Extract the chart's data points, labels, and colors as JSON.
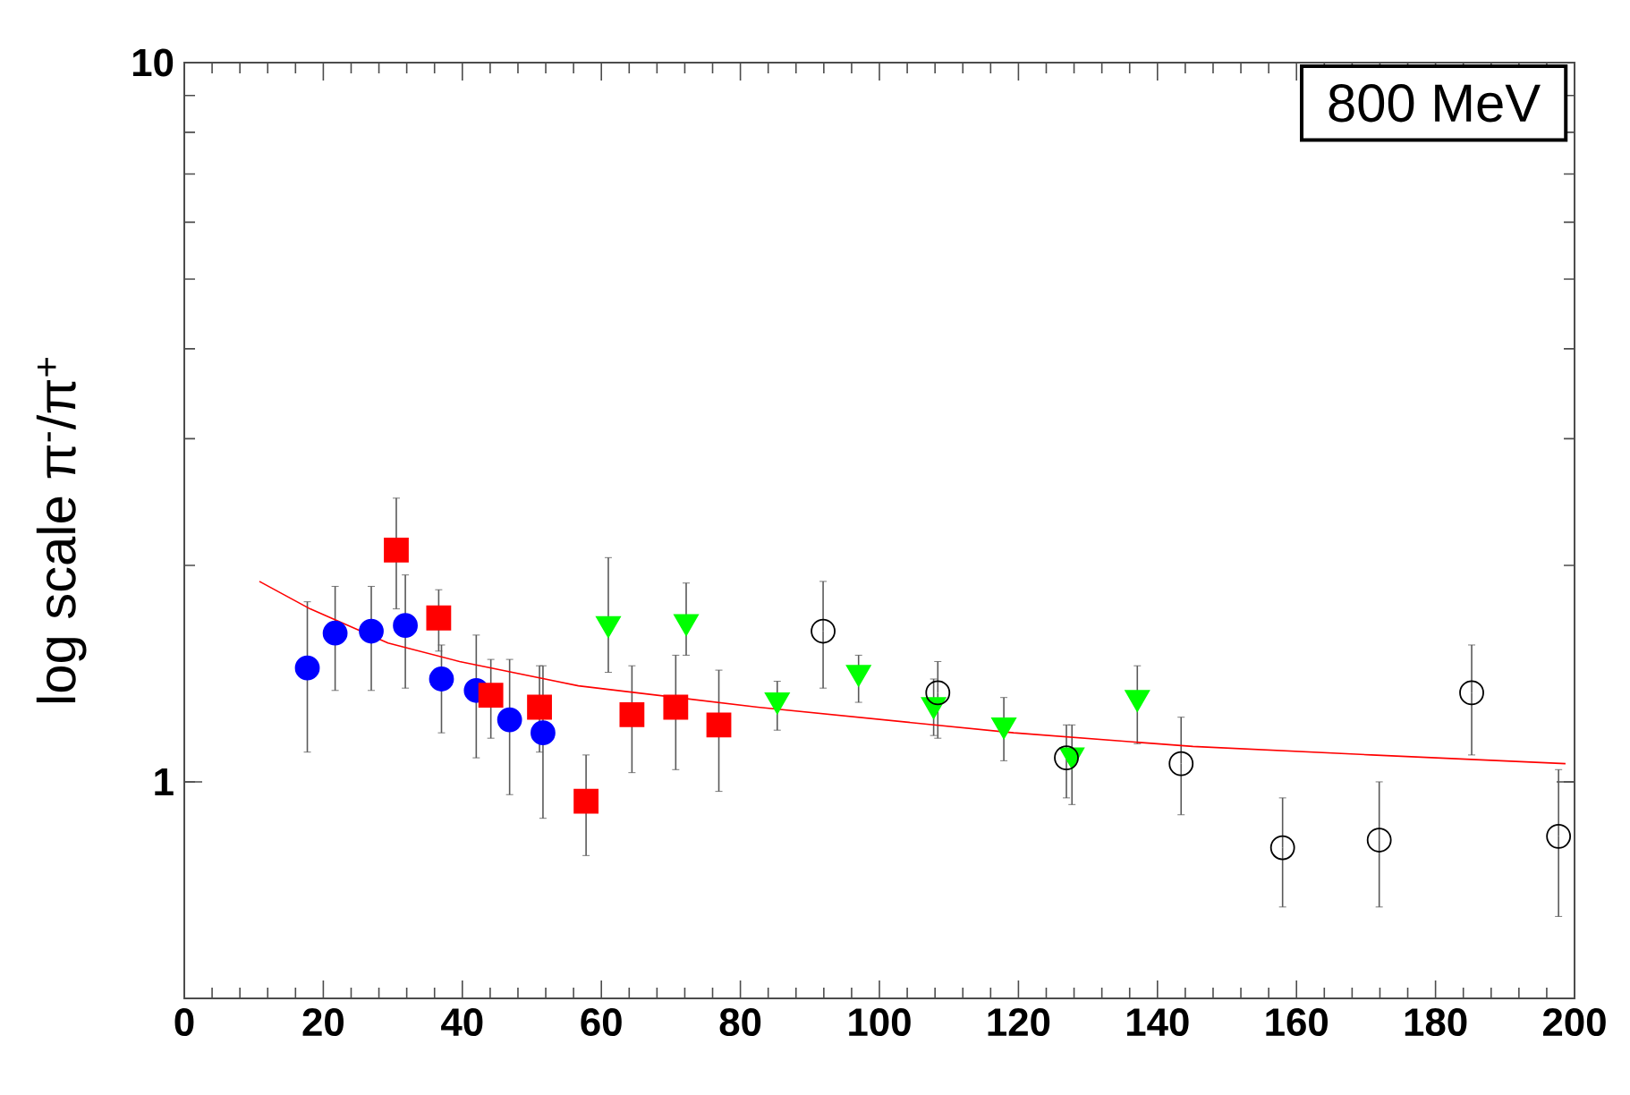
{
  "chart_data": {
    "type": "scatter",
    "ylabel": "log scale   π$^{-}$/π$^{+}$",
    "log": "y",
    "xlim": [
      0,
      200
    ],
    "xticks": [
      0,
      20,
      40,
      60,
      80,
      100,
      120,
      140,
      160,
      180,
      200
    ],
    "ylim": [
      0.5,
      10
    ],
    "yticks": [
      1,
      10
    ],
    "annotations": [
      "800 MeV"
    ],
    "series": [
      {
        "color": "#0000ff",
        "marker": "circle",
        "x": [
          17.7,
          21.7,
          26.9,
          31.8,
          37.0,
          42.0,
          46.8,
          51.6
        ],
        "values": [
          1.44,
          1.61,
          1.62,
          1.65,
          1.39,
          1.34,
          1.22,
          1.17
        ],
        "errors": [
          [
            1.1,
            1.78
          ],
          [
            1.34,
            1.87
          ],
          [
            1.34,
            1.87
          ],
          [
            1.35,
            1.94
          ],
          [
            1.17,
            1.55
          ],
          [
            1.08,
            1.6
          ],
          [
            0.96,
            1.48
          ],
          [
            0.89,
            1.45
          ]
        ]
      },
      {
        "color": "#ff0000",
        "marker": "square",
        "x": [
          30.5,
          36.6,
          44.1,
          51.1,
          57.8,
          64.4,
          70.7,
          76.9
        ],
        "values": [
          2.1,
          1.69,
          1.32,
          1.27,
          0.94,
          1.24,
          1.27,
          1.2
        ],
        "errors": [
          [
            1.74,
            2.48
          ],
          [
            1.52,
            1.85
          ],
          [
            1.15,
            1.48
          ],
          [
            1.1,
            1.45
          ],
          [
            0.79,
            1.09
          ],
          [
            1.03,
            1.45
          ],
          [
            1.04,
            1.5
          ],
          [
            0.97,
            1.43
          ]
        ]
      },
      {
        "color": "#00ff00",
        "marker": "triangle",
        "x": [
          61.0,
          72.2,
          85.3,
          97.0,
          107.8,
          117.9,
          127.7,
          137.1
        ],
        "values": [
          1.66,
          1.67,
          1.3,
          1.42,
          1.28,
          1.2,
          1.09,
          1.31
        ],
        "errors": [
          [
            1.42,
            2.05
          ],
          [
            1.5,
            1.89
          ],
          [
            1.18,
            1.38
          ],
          [
            1.29,
            1.5
          ],
          [
            1.16,
            1.39
          ],
          [
            1.07,
            1.31
          ],
          [
            0.93,
            1.2
          ],
          [
            1.13,
            1.45
          ]
        ]
      },
      {
        "color": "#000000",
        "marker": "circle",
        "x": [
          91.9,
          108.4,
          126.9,
          143.4,
          158.0,
          171.9,
          185.2,
          197.7
        ],
        "values": [
          1.62,
          1.33,
          1.08,
          1.06,
          0.81,
          0.83,
          1.33,
          0.84
        ],
        "errors": [
          [
            1.35,
            1.9
          ],
          [
            1.15,
            1.47
          ],
          [
            0.95,
            1.2
          ],
          [
            0.9,
            1.23
          ],
          [
            0.67,
            0.95
          ],
          [
            0.67,
            1.0
          ],
          [
            1.09,
            1.55
          ],
          [
            0.65,
            1.04
          ]
        ]
      },
      {
        "type": "line",
        "color": "#ff0000",
        "marker": "none",
        "x": [
          10.8,
          18.1,
          29.3,
          39.6,
          56.7,
          82.5,
          119.3,
          145.1,
          170.8,
          198.7
        ],
        "values": [
          1.9,
          1.74,
          1.56,
          1.47,
          1.36,
          1.27,
          1.17,
          1.12,
          1.09,
          1.06
        ]
      }
    ]
  }
}
